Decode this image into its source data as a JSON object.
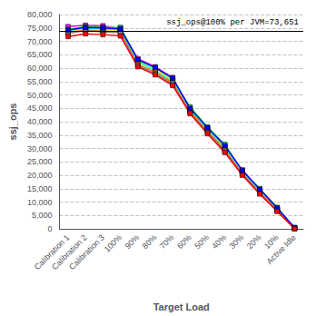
{
  "chart_data": {
    "type": "line",
    "xlabel": "Target Load",
    "ylabel": "ssj_ops",
    "categories": [
      "Calibration 1",
      "Calibration 2",
      "Calibration 3",
      "100%",
      "90%",
      "80%",
      "70%",
      "60%",
      "50%",
      "40%",
      "30%",
      "20%",
      "10%",
      "Active Idle"
    ],
    "series": [
      {
        "color": "#FF00FF",
        "marker": "square",
        "values": [
          75500,
          76000,
          75800,
          74800,
          63500,
          60500,
          56500,
          44000,
          37000,
          29000,
          22000,
          14500,
          7000,
          500
        ]
      },
      {
        "color": "#00FF00",
        "marker": "square",
        "values": [
          74500,
          75500,
          75200,
          75200,
          63000,
          60000,
          56000,
          45500,
          38000,
          31500,
          21500,
          15000,
          8000,
          300
        ]
      },
      {
        "color": "#FFFF00",
        "marker": "square",
        "values": [
          73500,
          74500,
          74000,
          74000,
          62000,
          59500,
          55500,
          44500,
          37500,
          30500,
          21000,
          14000,
          7500,
          200
        ]
      },
      {
        "color": "#00FFFF",
        "marker": "square",
        "values": [
          74000,
          75000,
          74500,
          74500,
          62500,
          59000,
          55000,
          44200,
          37000,
          30000,
          21200,
          14200,
          7200,
          350
        ]
      },
      {
        "color": "#FF8000",
        "marker": "square",
        "values": [
          73200,
          74200,
          73800,
          73500,
          61500,
          58500,
          54500,
          43800,
          36500,
          29500,
          20800,
          13800,
          7000,
          150
        ]
      },
      {
        "color": "#808080",
        "marker": "square",
        "values": [
          73000,
          74000,
          73500,
          73200,
          61000,
          58000,
          54000,
          43500,
          36000,
          29000,
          20500,
          13500,
          6800,
          100
        ]
      },
      {
        "color": "#0000FF",
        "marker": "square",
        "values": [
          74200,
          75200,
          75000,
          74700,
          63200,
          60200,
          56200,
          45000,
          37800,
          31000,
          21800,
          14800,
          7800,
          400
        ]
      },
      {
        "color": "#FF0000",
        "marker": "square",
        "values": [
          71800,
          72800,
          72500,
          72000,
          60500,
          57500,
          53500,
          43000,
          35500,
          28500,
          20000,
          13000,
          6500,
          50
        ]
      }
    ],
    "reference_line": {
      "value": 73651,
      "label": "ssj_ops@100% per JVM=73,651"
    },
    "ylim": [
      0,
      80000
    ],
    "yticks": [
      0,
      {
        "value": 5000,
        "label": "5,000"
      },
      {
        "value": 10000,
        "label": "10,000"
      },
      {
        "value": 15000,
        "label": "15,000"
      },
      {
        "value": 20000,
        "label": "20,000"
      },
      {
        "value": 25000,
        "label": "25,000"
      },
      {
        "value": 30000,
        "label": "30,000"
      },
      {
        "value": 35000,
        "label": "35,000"
      },
      {
        "value": 40000,
        "label": "40,000"
      },
      {
        "value": 45000,
        "label": "45,000"
      },
      {
        "value": 50000,
        "label": "50,000"
      },
      {
        "value": 55000,
        "label": "55,000"
      },
      {
        "value": 60000,
        "label": "60,000"
      },
      {
        "value": 65000,
        "label": "65,000"
      },
      {
        "value": 70000,
        "label": "70,000"
      },
      {
        "value": 75000,
        "label": "75,000"
      },
      {
        "value": 80000,
        "label": "80,000"
      }
    ],
    "grid": true
  }
}
